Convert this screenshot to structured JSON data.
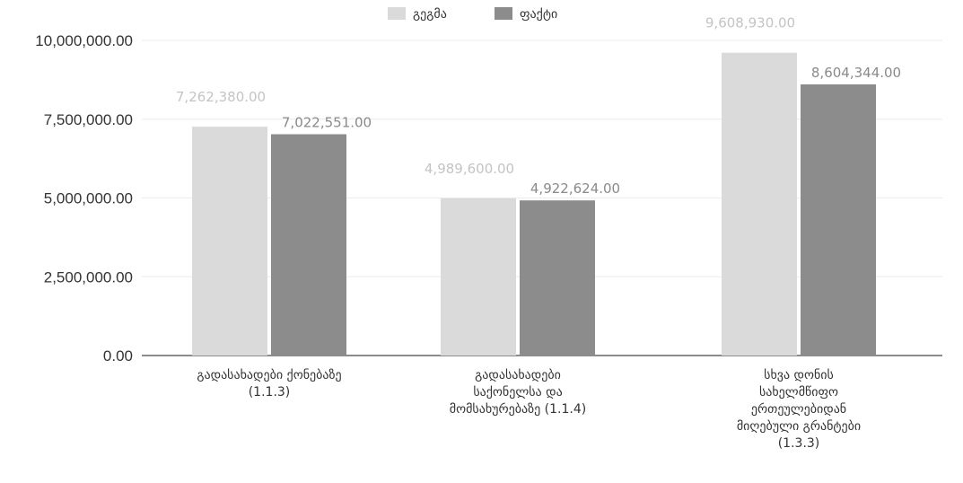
{
  "chart_data": {
    "type": "bar",
    "categories": [
      [
        "გადასახადები ქონებაზე",
        "(1.1.3)"
      ],
      [
        "გადასახადები",
        "საქონელსა და",
        "მომსახურებაზე (1.1.4)"
      ],
      [
        "სხვა დონის",
        "სახელმწიფო",
        "ერთეულებიდან",
        "მიღებული გრანტები",
        "(1.3.3)"
      ]
    ],
    "series": [
      {
        "name": "გეგმა",
        "values": [
          7262380,
          4989600,
          9608930
        ],
        "labels": [
          "7,262,380.00",
          "4,989,600.00",
          "9,608,930.00"
        ],
        "color": "#dadada",
        "label_color": "#c4c4c4"
      },
      {
        "name": "ფაქტი",
        "values": [
          7022551,
          4922624,
          8604344
        ],
        "labels": [
          "7,022,551.00",
          "4,922,624.00",
          "8,604,344.00"
        ],
        "color": "#8c8c8c",
        "label_color": "#8a8a8a"
      }
    ],
    "yticks": [
      0,
      2500000,
      5000000,
      7500000,
      10000000
    ],
    "ytick_labels": [
      "0.00",
      "2,500,000.00",
      "5,000,000.00",
      "7,500,000.00",
      "10,000,000.00"
    ],
    "ylim": [
      0,
      10000000
    ],
    "grid": true,
    "legend": "top",
    "title": "",
    "xlabel": "",
    "ylabel": ""
  }
}
